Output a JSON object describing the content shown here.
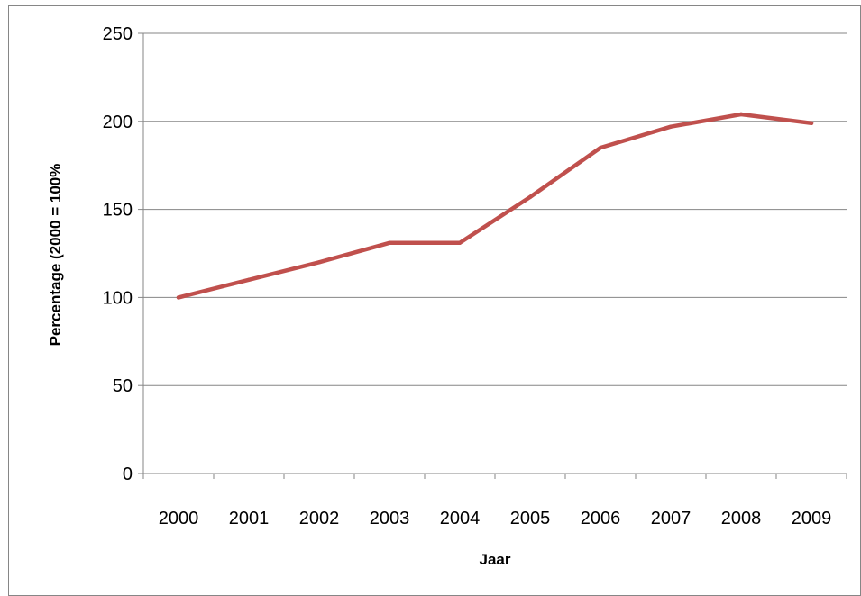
{
  "chart_data": {
    "type": "line",
    "x": [
      "2000",
      "2001",
      "2002",
      "2003",
      "2004",
      "2005",
      "2006",
      "2007",
      "2008",
      "2009"
    ],
    "series": [
      {
        "values": [
          100,
          110,
          120,
          131,
          131,
          157,
          185,
          197,
          204,
          199
        ]
      }
    ],
    "xlabel": "Jaar",
    "ylabel": "Percentage (2000 = 100%",
    "ylim": [
      0,
      250
    ],
    "yticks": [
      "0",
      "50",
      "100",
      "150",
      "200",
      "250"
    ],
    "grid": true,
    "legend": "none",
    "colors": {
      "series": "#c0504d",
      "grid": "#868686",
      "axis": "#868686"
    }
  }
}
